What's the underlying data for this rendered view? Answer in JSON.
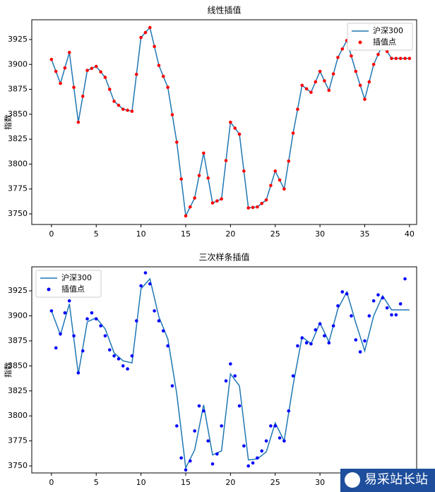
{
  "chart_data": [
    {
      "type": "line",
      "title": "线性插值",
      "ylabel": "指数",
      "legend": "upper right",
      "x": [
        0,
        1,
        2,
        3,
        4,
        5,
        6,
        7,
        8,
        9,
        10,
        11,
        12,
        13,
        14,
        15,
        16,
        17,
        18,
        19,
        20,
        21,
        22,
        23,
        24,
        25,
        26,
        27,
        28,
        29,
        30,
        31,
        32,
        33,
        34,
        35,
        36,
        37,
        38,
        39,
        40
      ],
      "xlim": [
        -2.2,
        40.8
      ],
      "xticks": [
        0,
        5,
        10,
        15,
        20,
        25,
        30,
        35,
        40
      ],
      "ylim": [
        3739.4,
        3944.8
      ],
      "yticks": [
        3750,
        3775,
        3800,
        3825,
        3850,
        3875,
        3900,
        3925
      ],
      "series": [
        {
          "name": "沪深300",
          "color": "#1f77b4",
          "style": "line",
          "values": [
            3905,
            3881,
            3912,
            3842,
            3894,
            3898,
            3887,
            3863,
            3855,
            3853,
            3927,
            3937,
            3899,
            3877,
            3822,
            3748,
            3766,
            3811,
            3761,
            3765,
            3842,
            3830,
            3756,
            3757,
            3764,
            3793,
            3775,
            3831,
            3879,
            3872,
            3893,
            3874,
            3907,
            3924,
            3893,
            3865,
            3900,
            3920,
            3906,
            3906,
            3906
          ]
        },
        {
          "name": "插值点",
          "color": "#ff0000",
          "style": "scatter",
          "x": [
            0,
            0.5,
            1,
            1.5,
            2,
            2.5,
            3,
            3.5,
            4,
            4.5,
            5,
            5.5,
            6,
            6.5,
            7,
            7.5,
            8,
            8.5,
            9,
            9.5,
            10,
            10.5,
            11,
            11.5,
            12,
            12.5,
            13,
            13.5,
            14,
            14.5,
            15,
            15.5,
            16,
            16.5,
            17,
            17.5,
            18,
            18.5,
            19,
            19.5,
            20,
            20.5,
            21,
            21.5,
            22,
            22.5,
            23,
            23.5,
            24,
            24.5,
            25,
            25.5,
            26,
            26.5,
            27,
            27.5,
            28,
            28.5,
            29,
            29.5,
            30,
            30.5,
            31,
            31.5,
            32,
            32.5,
            33,
            33.5,
            34,
            34.5,
            35,
            35.5,
            36,
            36.5,
            37,
            37.5,
            38,
            38.5,
            39,
            39.5,
            40
          ],
          "values": [
            3905,
            3893,
            3881,
            3896.5,
            3912,
            3877,
            3842,
            3868,
            3894,
            3896,
            3898,
            3892.5,
            3887,
            3875,
            3863,
            3859,
            3855,
            3854,
            3853,
            3890,
            3927,
            3932,
            3937,
            3918,
            3899,
            3888,
            3877,
            3849.5,
            3822,
            3785,
            3748,
            3757,
            3766,
            3788.5,
            3811,
            3786,
            3761,
            3763,
            3765,
            3803.5,
            3842,
            3836,
            3830,
            3793,
            3756,
            3756.5,
            3757,
            3760.5,
            3764,
            3778.5,
            3793,
            3784,
            3775,
            3803,
            3831,
            3855,
            3879,
            3875.5,
            3872,
            3882.5,
            3893,
            3883.5,
            3874,
            3890.5,
            3907,
            3915.5,
            3924,
            3908.5,
            3893,
            3879,
            3865,
            3882.5,
            3900,
            3910,
            3920,
            3913,
            3906,
            3906,
            3906,
            3906,
            3906
          ]
        }
      ]
    },
    {
      "type": "line",
      "title": "三次样条插值",
      "ylabel": "指数",
      "legend": "upper left",
      "x": [
        0,
        1,
        2,
        3,
        4,
        5,
        6,
        7,
        8,
        9,
        10,
        11,
        12,
        13,
        14,
        15,
        16,
        17,
        18,
        19,
        20,
        21,
        22,
        23,
        24,
        25,
        26,
        27,
        28,
        29,
        30,
        31,
        32,
        33,
        34,
        35,
        36,
        37,
        38,
        39,
        40
      ],
      "xlim": [
        -2.2,
        40.8
      ],
      "xticks": [
        0,
        5,
        10,
        15,
        20,
        25,
        30
      ],
      "ylim": [
        3743,
        3949
      ],
      "yticks": [
        3750,
        3775,
        3800,
        3825,
        3850,
        3875,
        3900,
        3925
      ],
      "series": [
        {
          "name": "沪深300",
          "color": "#1f77b4",
          "style": "line",
          "values": [
            3905,
            3881,
            3912,
            3842,
            3894,
            3898,
            3887,
            3863,
            3855,
            3853,
            3927,
            3937,
            3899,
            3877,
            3822,
            3748,
            3766,
            3811,
            3761,
            3765,
            3842,
            3830,
            3756,
            3757,
            3764,
            3793,
            3775,
            3831,
            3879,
            3872,
            3893,
            3874,
            3907,
            3924,
            3893,
            3865,
            3900,
            3920,
            3906,
            3906,
            3906
          ]
        },
        {
          "name": "插值点",
          "color": "#0000ff",
          "style": "scatter",
          "x": [
            0,
            0.5,
            1,
            1.5,
            2,
            2.5,
            3,
            3.5,
            4,
            4.5,
            5,
            5.5,
            6,
            6.5,
            7,
            7.5,
            8,
            8.5,
            9,
            9.5,
            10,
            10.5,
            11,
            11.5,
            12,
            12.5,
            13,
            13.5,
            14,
            14.5,
            15,
            15.5,
            16,
            16.5,
            17,
            17.5,
            18,
            18.5,
            19,
            19.5,
            20,
            20.5,
            21,
            21.5,
            22,
            22.5,
            23,
            23.5,
            24,
            24.5,
            25,
            25.5,
            26,
            26.5,
            27,
            27.5,
            28,
            28.5,
            29,
            29.5,
            30,
            30.5,
            31,
            31.5,
            32,
            32.5,
            33,
            33.5,
            34,
            34.5,
            35,
            35.5,
            36,
            36.5,
            37,
            37.5,
            38,
            38.5,
            39,
            39.5
          ],
          "values": [
            3905,
            3868,
            3882,
            3903,
            3915,
            3880,
            3843,
            3865,
            3897,
            3903,
            3897,
            3890,
            3880,
            3866,
            3860,
            3857,
            3850,
            3847,
            3860,
            3895,
            3930,
            3943,
            3932,
            3905,
            3895,
            3885,
            3870,
            3830,
            3790,
            3758,
            3746,
            3755,
            3785,
            3810,
            3805,
            3775,
            3752,
            3762,
            3790,
            3835,
            3852,
            3840,
            3810,
            3770,
            3750,
            3753,
            3758,
            3765,
            3775,
            3790,
            3790,
            3778,
            3775,
            3805,
            3840,
            3870,
            3878,
            3873,
            3872,
            3886,
            3892,
            3880,
            3873,
            3890,
            3910,
            3924,
            3922,
            3900,
            3876,
            3864,
            3875,
            3900,
            3915,
            3921,
            3918,
            3908,
            3901,
            3901,
            3912,
            3937
          ]
        }
      ]
    }
  ],
  "watermark": "易采站长站"
}
